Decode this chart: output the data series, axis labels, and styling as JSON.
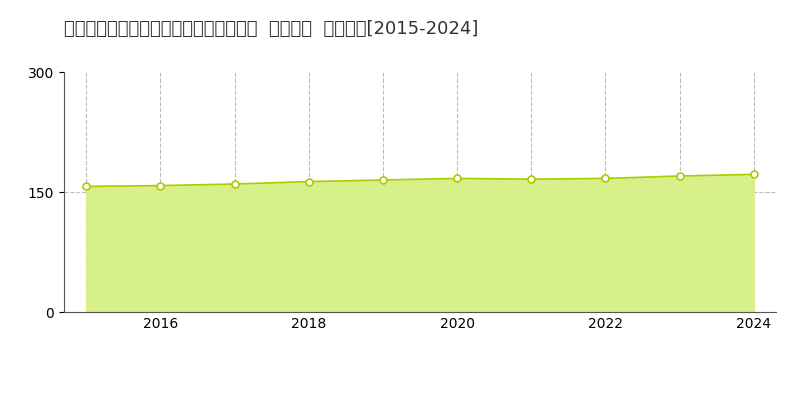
{
  "title": "東京都杉並区久我山５丁目２８３番７外  公示地価  地価推移[2015-2024]",
  "years": [
    2015,
    2016,
    2017,
    2018,
    2019,
    2020,
    2021,
    2022,
    2023,
    2024
  ],
  "values": [
    157,
    158,
    160,
    163,
    165,
    167,
    166,
    167,
    170,
    172
  ],
  "ylim": [
    0,
    300
  ],
  "yticks": [
    0,
    150,
    300
  ],
  "xticks": [
    2016,
    2018,
    2020,
    2022,
    2024
  ],
  "line_color": "#aacc00",
  "fill_color": "#d8f08a",
  "marker_facecolor": "#ffffff",
  "marker_edgecolor": "#aacc00",
  "grid_color": "#bbbbbb",
  "background_color": "#ffffff",
  "legend_color": "#c8e064",
  "title_fontsize": 13,
  "axis_fontsize": 10,
  "legend_fontsize": 10,
  "copyright_fontsize": 9
}
